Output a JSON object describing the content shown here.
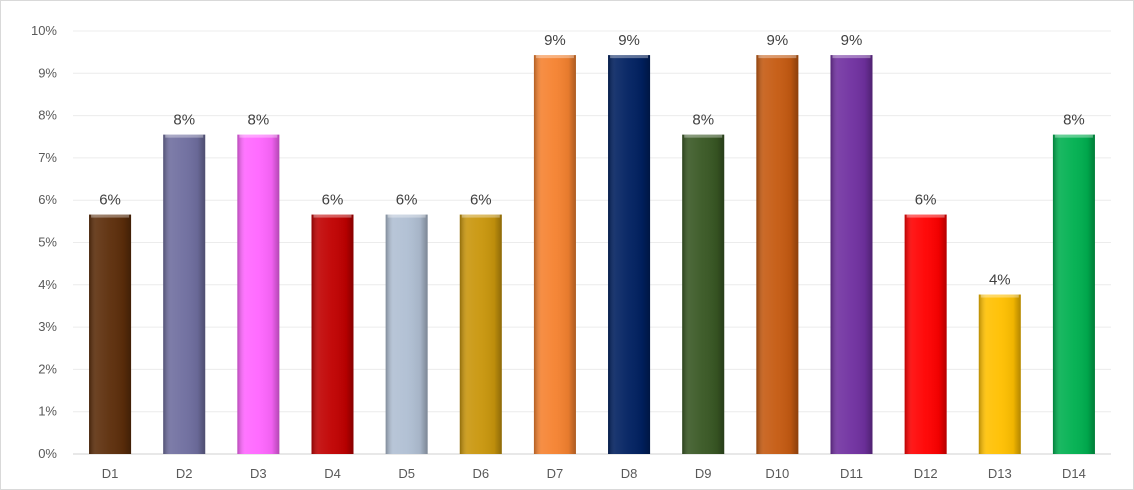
{
  "chart_data": {
    "type": "bar",
    "categories": [
      "D1",
      "D2",
      "D3",
      "D4",
      "D5",
      "D6",
      "D7",
      "D8",
      "D9",
      "D10",
      "D11",
      "D12",
      "D13",
      "D14"
    ],
    "values": [
      5.66,
      7.55,
      7.55,
      5.66,
      5.66,
      5.66,
      9.43,
      9.43,
      7.55,
      9.43,
      9.43,
      5.66,
      3.77,
      7.55
    ],
    "data_labels": [
      "6%",
      "8%",
      "8%",
      "6%",
      "6%",
      "6%",
      "9%",
      "9%",
      "8%",
      "9%",
      "9%",
      "6%",
      "4%",
      "8%"
    ],
    "y_ticks": [
      0,
      1,
      2,
      3,
      4,
      5,
      6,
      7,
      8,
      9,
      10
    ],
    "y_tick_labels": [
      "0%",
      "1%",
      "2%",
      "3%",
      "4%",
      "5%",
      "6%",
      "7%",
      "8%",
      "9%",
      "10%"
    ],
    "ylim": [
      0,
      10
    ],
    "grid": true,
    "legend": "none",
    "title": "",
    "xlabel": "",
    "ylabel": "",
    "colors": [
      "#5c2d0a",
      "#6f6e9f",
      "#ff66ff",
      "#c00000",
      "#b0bfd3",
      "#c9960c",
      "#f58230",
      "#002060",
      "#385723",
      "#c55a11",
      "#7030a0",
      "#ff0000",
      "#ffc000",
      "#00b050"
    ]
  }
}
